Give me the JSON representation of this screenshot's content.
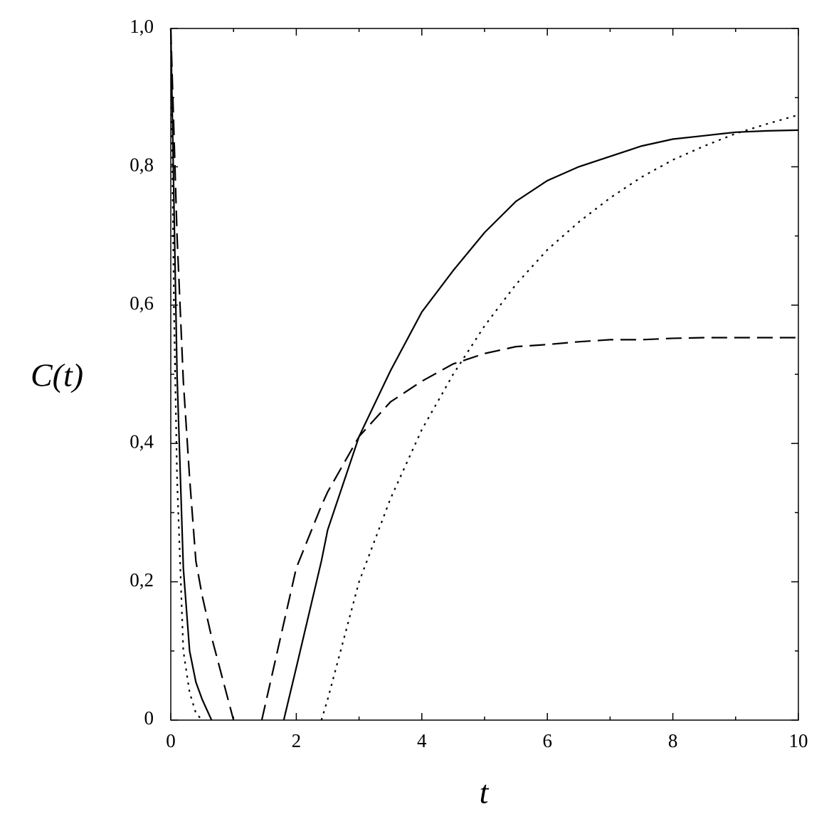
{
  "chart_data": {
    "type": "line",
    "x_label": "t",
    "y_label": "C(t)",
    "x": [
      0,
      0.05,
      0.1,
      0.2,
      0.3,
      0.4,
      0.5,
      0.65,
      1.0,
      1.2,
      1.45,
      1.8,
      2,
      2.4,
      2.5,
      3,
      3.5,
      4,
      4.5,
      5,
      5.5,
      6,
      6.5,
      7,
      7.5,
      8,
      8.5,
      9,
      9.5,
      10
    ],
    "series": [
      {
        "color": "#000000",
        "dash": "solid",
        "values": [
          1,
          0.75,
          0.5,
          0.22,
          0.1,
          0.055,
          0.03,
          0,
          null,
          null,
          null,
          0,
          0.076,
          0.23,
          0.275,
          0.41,
          0.505,
          0.59,
          0.65,
          0.705,
          0.75,
          0.78,
          0.8,
          0.815,
          0.83,
          0.84,
          0.845,
          0.85,
          0.852,
          0.853
        ]
      },
      {
        "color": "#000000",
        "dash": "dashed",
        "values": [
          1,
          0.85,
          0.7,
          0.49,
          0.35,
          0.23,
          0.18,
          0.12,
          0,
          null,
          0,
          0.14,
          0.22,
          0.31,
          0.33,
          0.41,
          0.46,
          0.49,
          0.515,
          0.53,
          0.54,
          0.543,
          0.547,
          0.55,
          0.55,
          0.552,
          0.553,
          0.553,
          0.553,
          0.553
        ]
      },
      {
        "color": "#000000",
        "dash": "dotted",
        "values": [
          1,
          0.6,
          0.35,
          0.1,
          0.04,
          0.01,
          0,
          null,
          null,
          null,
          null,
          null,
          null,
          0,
          0.03,
          0.2,
          0.32,
          0.42,
          0.5,
          0.57,
          0.63,
          0.68,
          0.72,
          0.755,
          0.785,
          0.81,
          0.83,
          0.848,
          0.862,
          0.875
        ]
      }
    ],
    "xlim": [
      0,
      10
    ],
    "xticks": [
      0,
      2,
      4,
      6,
      8,
      10
    ],
    "xminorticks": [
      1,
      3,
      5,
      7,
      9
    ],
    "ylim": [
      0,
      1
    ],
    "yticks": [
      0,
      {
        "value": 0.2,
        "label": "0,2"
      },
      {
        "value": 0.4,
        "label": "0,4"
      },
      {
        "value": 0.6,
        "label": "0,6"
      },
      {
        "value": 0.8,
        "label": "0,8"
      },
      {
        "value": 1,
        "label": "1,0"
      }
    ],
    "yminorticks": [
      0.1,
      0.3,
      0.5,
      0.7,
      0.9
    ],
    "grid": false
  }
}
